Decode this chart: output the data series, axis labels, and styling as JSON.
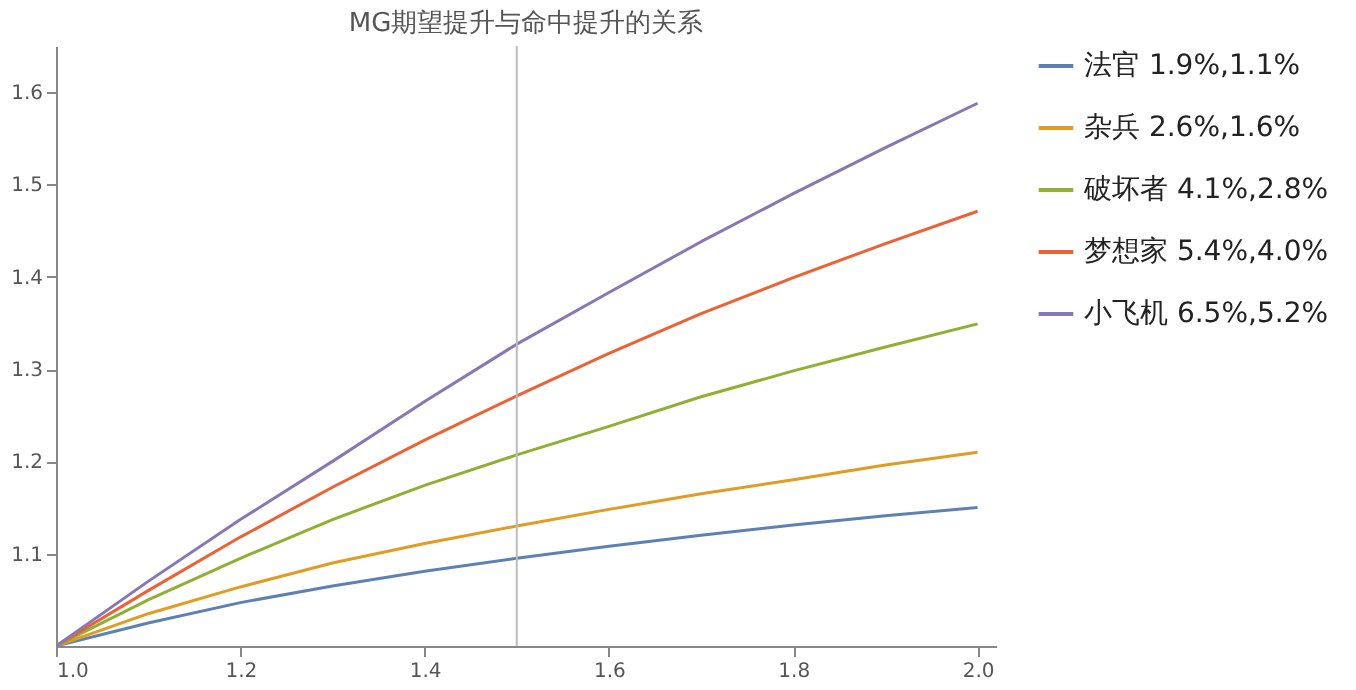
{
  "chart_data": {
    "type": "line",
    "title": "MG期望提升与命中提升的关系",
    "x": [
      1.0,
      1.1,
      1.2,
      1.3,
      1.4,
      1.5,
      1.6,
      1.7,
      1.8,
      1.9,
      2.0
    ],
    "series": [
      {
        "name": "法官 1.9%,1.1%",
        "color": "#5e81b5",
        "values": [
          1.0,
          1.025,
          1.047,
          1.065,
          1.081,
          1.095,
          1.108,
          1.12,
          1.131,
          1.141,
          1.15
        ]
      },
      {
        "name": "杂兵 2.6%,1.6%",
        "color": "#e19c24",
        "values": [
          1.0,
          1.035,
          1.064,
          1.09,
          1.111,
          1.13,
          1.148,
          1.165,
          1.18,
          1.196,
          1.21
        ]
      },
      {
        "name": "破坏者 4.1%,2.8%",
        "color": "#8fb032",
        "values": [
          1.0,
          1.05,
          1.095,
          1.137,
          1.174,
          1.207,
          1.238,
          1.27,
          1.298,
          1.324,
          1.349
        ]
      },
      {
        "name": "梦想家 5.4%,4.0%",
        "color": "#eb6235",
        "values": [
          1.0,
          1.06,
          1.118,
          1.172,
          1.223,
          1.271,
          1.317,
          1.36,
          1.399,
          1.436,
          1.471
        ]
      },
      {
        "name": "小飞机 6.5%,5.2%",
        "color": "#8778b3",
        "values": [
          1.0,
          1.07,
          1.137,
          1.2,
          1.265,
          1.327,
          1.383,
          1.438,
          1.49,
          1.54,
          1.588
        ]
      }
    ],
    "xlim": [
      1.0,
      2.02
    ],
    "xticks": [
      {
        "value": 1.0,
        "label": "1.0"
      },
      1.2,
      1.4,
      1.6,
      1.8,
      {
        "value": 2.0,
        "label": "2.0"
      }
    ],
    "ylim": [
      1.0,
      1.65
    ],
    "yticks": [
      1.1,
      1.2,
      1.3,
      1.4,
      1.5,
      1.6
    ],
    "ref_lines": [
      {
        "axis": "x",
        "value": 1.5,
        "color": "#bbbbbb"
      }
    ],
    "grid": false,
    "legend": "right",
    "marker": "none",
    "line_style": "solid"
  }
}
